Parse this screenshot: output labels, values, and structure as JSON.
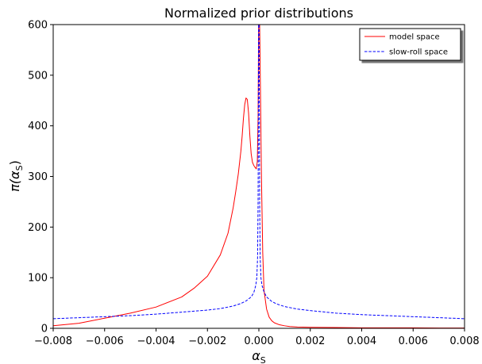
{
  "chart_data": {
    "type": "line",
    "title": "Normalized prior distributions",
    "xlabel": "α",
    "xlabel_sub": "S",
    "ylabel_main": "π(α",
    "ylabel_sub": "S",
    "ylabel_close": ")",
    "xlim": [
      -0.008,
      0.008
    ],
    "ylim": [
      0,
      600
    ],
    "xticks": [
      -0.008,
      -0.006,
      -0.004,
      -0.002,
      0.0,
      0.002,
      0.004,
      0.006,
      0.008
    ],
    "xtick_labels": [
      "−0.008",
      "−0.006",
      "−0.004",
      "−0.002",
      "0.000",
      "0.002",
      "0.004",
      "0.006",
      "0.008"
    ],
    "yticks": [
      0,
      100,
      200,
      300,
      400,
      500,
      600
    ],
    "ytick_labels": [
      "0",
      "100",
      "200",
      "300",
      "400",
      "500",
      "600"
    ],
    "grid": false,
    "legend_position": "top-right",
    "series": [
      {
        "name": "model space",
        "color": "#ff0000",
        "style": "solid",
        "x": [
          -0.008,
          -0.007,
          -0.006,
          -0.005,
          -0.004,
          -0.003,
          -0.0025,
          -0.002,
          -0.0015,
          -0.0012,
          -0.001,
          -0.0009,
          -0.0008,
          -0.0007,
          -0.00065,
          -0.0006,
          -0.00055,
          -0.0005,
          -0.00045,
          -0.0004,
          -0.00035,
          -0.0003,
          -0.00025,
          -0.0002,
          -0.00015,
          -0.0001,
          -6e-05,
          -3e-05,
          -1e-05,
          0.0,
          3e-05,
          6e-05,
          0.0001,
          0.00015,
          0.0002,
          0.0003,
          0.0004,
          0.0005,
          0.0006,
          0.0008,
          0.001,
          0.0012,
          0.0015,
          0.002,
          0.003,
          0.004,
          0.005,
          0.006,
          0.007,
          0.008
        ],
        "y": [
          5,
          10,
          20,
          30,
          42,
          62,
          80,
          103,
          145,
          188,
          238,
          270,
          305,
          350,
          380,
          415,
          442,
          455,
          452,
          425,
          380,
          345,
          328,
          322,
          318,
          315,
          330,
          420,
          600,
          600,
          600,
          480,
          300,
          150,
          75,
          38,
          22,
          15,
          11,
          7,
          5,
          3.5,
          2.5,
          2,
          1.5,
          1,
          1,
          1,
          0.5,
          0.5
        ]
      },
      {
        "name": "slow-roll space",
        "color": "#0000ff",
        "style": "dashed",
        "x": [
          -0.008,
          -0.007,
          -0.006,
          -0.005,
          -0.004,
          -0.003,
          -0.002,
          -0.0015,
          -0.001,
          -0.0007,
          -0.0005,
          -0.0003,
          -0.0002,
          -0.00012,
          -8e-05,
          -5e-05,
          -3e-05,
          -1e-05,
          0.0,
          1e-05,
          3e-05,
          5e-05,
          8e-05,
          0.00012,
          0.0002,
          0.0003,
          0.0005,
          0.0007,
          0.001,
          0.0015,
          0.002,
          0.003,
          0.004,
          0.005,
          0.006,
          0.007,
          0.008
        ],
        "y": [
          19,
          21,
          23,
          25,
          28,
          32,
          36,
          39,
          44,
          49,
          54,
          62,
          70,
          85,
          100,
          140,
          250,
          600,
          600,
          600,
          250,
          140,
          100,
          85,
          72,
          62,
          53,
          48,
          43,
          38,
          35,
          30,
          27,
          25,
          23,
          21,
          19
        ]
      }
    ]
  }
}
